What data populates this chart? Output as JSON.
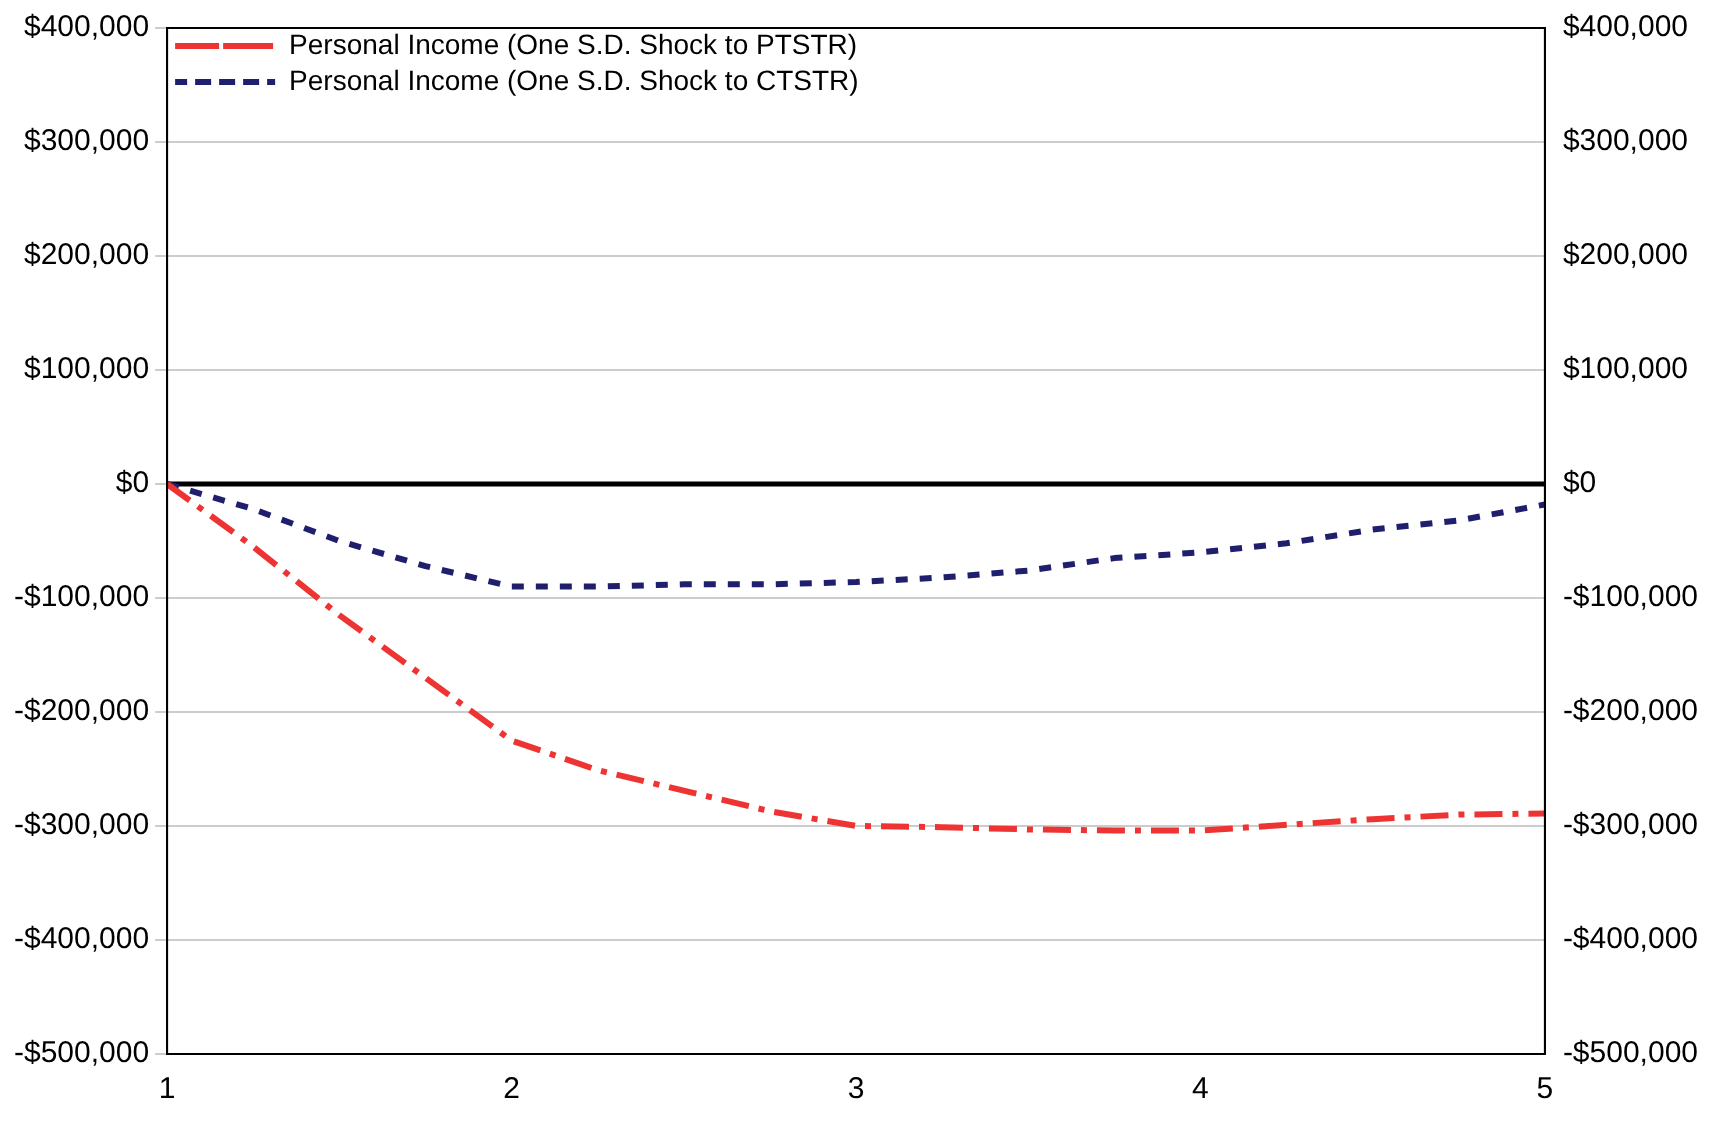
{
  "chart_data": {
    "type": "line",
    "x": [
      1,
      1.25,
      1.5,
      1.75,
      2,
      2.25,
      2.5,
      2.75,
      3,
      3.25,
      3.5,
      3.75,
      4,
      4.25,
      4.5,
      4.75,
      5
    ],
    "series": [
      {
        "name": "Personal Income (One S.D. Shock to PTSTR)",
        "color": "#ee3333",
        "line_style": "dashed",
        "values": [
          0,
          -55000,
          -115000,
          -170000,
          -225000,
          -251000,
          -269000,
          -287000,
          -300000,
          -301000,
          -303000,
          -304000,
          -304000,
          -299000,
          -294000,
          -290000,
          -289000
        ]
      },
      {
        "name": "Personal Income (One S.D. Shock to CTSTR)",
        "color": "#1f1f6e",
        "line_style": "dotted",
        "values": [
          0,
          -22000,
          -50000,
          -72000,
          -90000,
          -90000,
          -88000,
          -88000,
          -86000,
          -82000,
          -76000,
          -65000,
          -60000,
          -52000,
          -40000,
          -32000,
          -18000
        ]
      }
    ],
    "xlim": [
      1,
      5
    ],
    "xticks": [
      1,
      2,
      3,
      4,
      5
    ],
    "ylim": [
      -500000,
      400000
    ],
    "yticks": [
      {
        "value": -500000,
        "label": "-$500,000"
      },
      {
        "value": -400000,
        "label": "-$400,000"
      },
      {
        "value": -300000,
        "label": "-$300,000"
      },
      {
        "value": -200000,
        "label": "-$200,000"
      },
      {
        "value": -100000,
        "label": "-$100,000"
      },
      {
        "value": 0,
        "label": "$0"
      },
      {
        "value": 100000,
        "label": "$100,000"
      },
      {
        "value": 200000,
        "label": "$200,000"
      },
      {
        "value": 300000,
        "label": "$300,000"
      },
      {
        "value": 400000,
        "label": "$400,000"
      }
    ],
    "y2lim": [
      -500000,
      400000
    ],
    "y2ticks": [
      {
        "value": -500000,
        "label": "-$500,000"
      },
      {
        "value": -400000,
        "label": "-$400,000"
      },
      {
        "value": -300000,
        "label": "-$300,000"
      },
      {
        "value": -200000,
        "label": "-$200,000"
      },
      {
        "value": -100000,
        "label": "-$100,000"
      },
      {
        "value": 0,
        "label": "$0"
      },
      {
        "value": 100000,
        "label": "$100,000"
      },
      {
        "value": 200000,
        "label": "$200,000"
      },
      {
        "value": 300000,
        "label": "$300,000"
      },
      {
        "value": 400000,
        "label": "$400,000"
      }
    ],
    "ref_lines": [
      {
        "axis": "y",
        "value": 0,
        "color": "#000000"
      }
    ],
    "grid": "y",
    "legend": "top left",
    "marker": "none"
  }
}
